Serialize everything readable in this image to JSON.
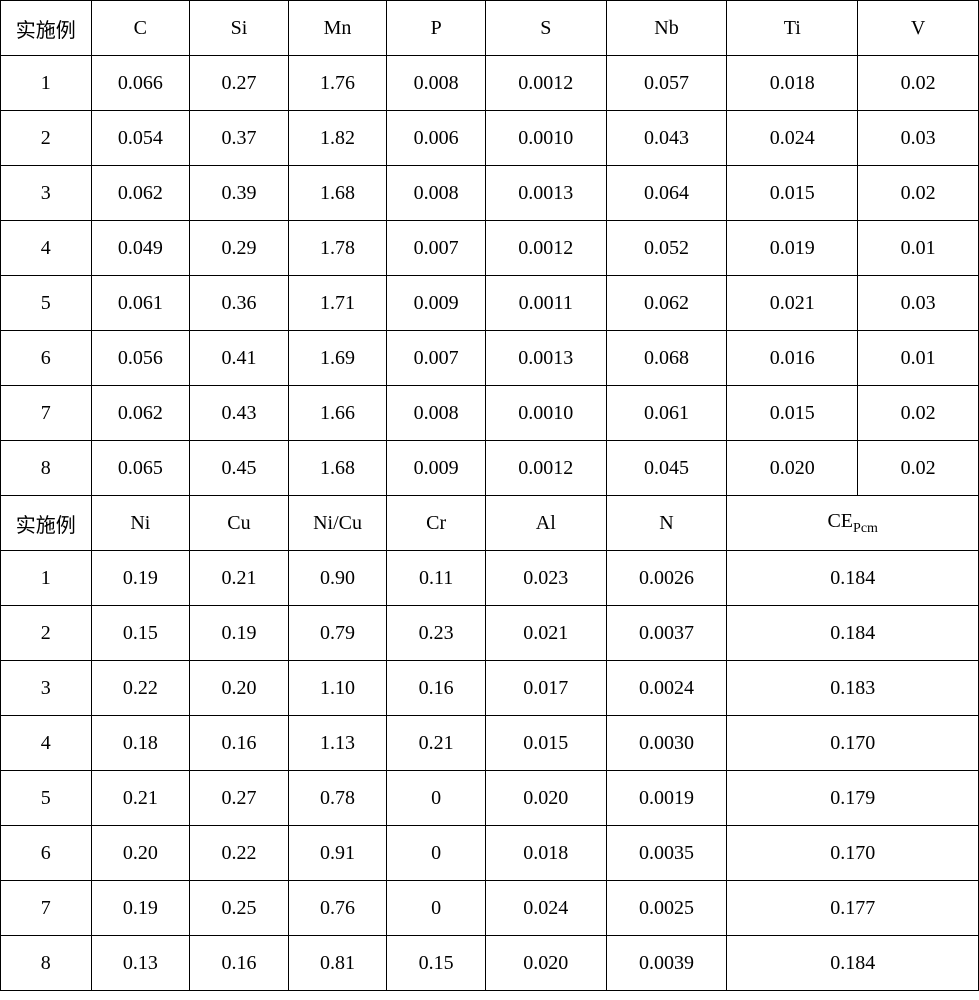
{
  "table": {
    "colors": {
      "border": "#000000",
      "text": "#000000",
      "background": "#ffffff"
    },
    "font_size_pt": 15,
    "col_widths_section1": [
      90,
      98,
      98,
      98,
      98,
      120,
      120,
      130,
      120
    ],
    "col_widths_section2": [
      90,
      98,
      98,
      98,
      98,
      120,
      120,
      250
    ],
    "header1": [
      "实施例",
      "C",
      "Si",
      "Mn",
      "P",
      "S",
      "Nb",
      "Ti",
      "V"
    ],
    "rows1": [
      [
        "1",
        "0.066",
        "0.27",
        "1.76",
        "0.008",
        "0.0012",
        "0.057",
        "0.018",
        "0.02"
      ],
      [
        "2",
        "0.054",
        "0.37",
        "1.82",
        "0.006",
        "0.0010",
        "0.043",
        "0.024",
        "0.03"
      ],
      [
        "3",
        "0.062",
        "0.39",
        "1.68",
        "0.008",
        "0.0013",
        "0.064",
        "0.015",
        "0.02"
      ],
      [
        "4",
        "0.049",
        "0.29",
        "1.78",
        "0.007",
        "0.0012",
        "0.052",
        "0.019",
        "0.01"
      ],
      [
        "5",
        "0.061",
        "0.36",
        "1.71",
        "0.009",
        "0.0011",
        "0.062",
        "0.021",
        "0.03"
      ],
      [
        "6",
        "0.056",
        "0.41",
        "1.69",
        "0.007",
        "0.0013",
        "0.068",
        "0.016",
        "0.01"
      ],
      [
        "7",
        "0.062",
        "0.43",
        "1.66",
        "0.008",
        "0.0010",
        "0.061",
        "0.015",
        "0.02"
      ],
      [
        "8",
        "0.065",
        "0.45",
        "1.68",
        "0.009",
        "0.0012",
        "0.045",
        "0.020",
        "0.02"
      ]
    ],
    "header2": [
      "实施例",
      "Ni",
      "Cu",
      "Ni/Cu",
      "Cr",
      "Al",
      "N"
    ],
    "header2_last_main": "CE",
    "header2_last_sub": "Pcm",
    "rows2": [
      [
        "1",
        "0.19",
        "0.21",
        "0.90",
        "0.11",
        "0.023",
        "0.0026",
        "0.184"
      ],
      [
        "2",
        "0.15",
        "0.19",
        "0.79",
        "0.23",
        "0.021",
        "0.0037",
        "0.184"
      ],
      [
        "3",
        "0.22",
        "0.20",
        "1.10",
        "0.16",
        "0.017",
        "0.0024",
        "0.183"
      ],
      [
        "4",
        "0.18",
        "0.16",
        "1.13",
        "0.21",
        "0.015",
        "0.0030",
        "0.170"
      ],
      [
        "5",
        "0.21",
        "0.27",
        "0.78",
        "0",
        "0.020",
        "0.0019",
        "0.179"
      ],
      [
        "6",
        "0.20",
        "0.22",
        "0.91",
        "0",
        "0.018",
        "0.0035",
        "0.170"
      ],
      [
        "7",
        "0.19",
        "0.25",
        "0.76",
        "0",
        "0.024",
        "0.0025",
        "0.177"
      ],
      [
        "8",
        "0.13",
        "0.16",
        "0.81",
        "0.15",
        "0.020",
        "0.0039",
        "0.184"
      ]
    ]
  }
}
